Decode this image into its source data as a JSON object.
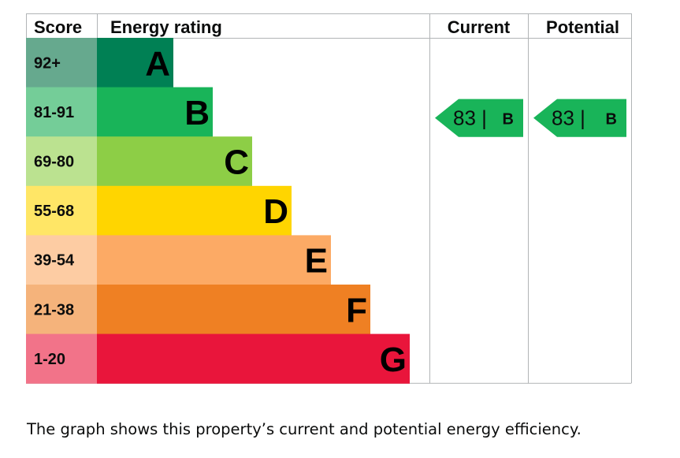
{
  "chart_data": {
    "type": "table",
    "headers": {
      "score": "Score",
      "rating": "Energy rating",
      "current": "Current",
      "potential": "Potential"
    },
    "bands": [
      {
        "letter": "A",
        "range": "92+",
        "color": "#008054",
        "label_color": "#66a98e"
      },
      {
        "letter": "B",
        "range": "81-91",
        "color": "#19b459",
        "label_color": "#74cd98"
      },
      {
        "letter": "C",
        "range": "69-80",
        "color": "#8dce46",
        "label_color": "#bbe290"
      },
      {
        "letter": "D",
        "range": "55-68",
        "color": "#ffd500",
        "label_color": "#ffe666"
      },
      {
        "letter": "E",
        "range": "39-54",
        "color": "#fcaa65",
        "label_color": "#fdcca3"
      },
      {
        "letter": "F",
        "range": "21-38",
        "color": "#ef8023",
        "label_color": "#f5b37b"
      },
      {
        "letter": "G",
        "range": "1-20",
        "color": "#e9153b",
        "label_color": "#f27389"
      }
    ],
    "current": {
      "score": 83,
      "band": "B",
      "color": "#19b459"
    },
    "potential": {
      "score": 83,
      "band": "B",
      "color": "#19b459"
    }
  },
  "caption": "The graph shows this property’s current and potential energy efficiency."
}
